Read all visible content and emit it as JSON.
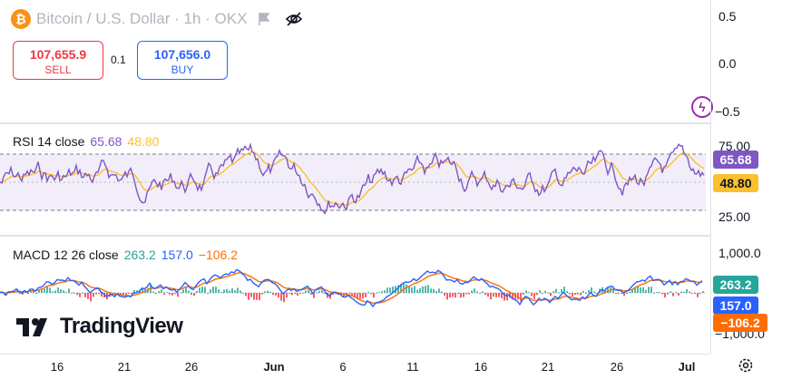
{
  "header": {
    "coin_symbol": "₿",
    "title": "Bitcoin / U.S. Dollar · 1h · OKX"
  },
  "trade": {
    "sell_price": "107,655.9",
    "sell_label": "SELL",
    "spread": "0.1",
    "buy_price": "107,656.0",
    "buy_label": "BUY"
  },
  "price_axis": [
    "0.5",
    "0.0",
    "−0.5"
  ],
  "rsi": {
    "name": "RSI 14 close",
    "value": "65.68",
    "ma_value": "48.80",
    "axis": [
      "75.00",
      "25.00"
    ],
    "badge_value": "65.68",
    "badge_ma": "48.80",
    "colors": {
      "rsi": "#7e57c2",
      "ma": "#fbc02d"
    }
  },
  "macd": {
    "name": "MACD 12 26 close",
    "histogram": "263.2",
    "macd": "157.0",
    "signal": "−106.2",
    "axis": [
      "1,000.0",
      "−1,000.0"
    ],
    "badge_hist": "263.2",
    "badge_macd": "157.0",
    "badge_signal": "−106.2",
    "colors": {
      "histogram": "#26a69a",
      "macd": "#2962ff",
      "signal": "#ff6d00"
    }
  },
  "logo": {
    "text": "TradingView"
  },
  "time_axis": [
    "16",
    "21",
    "26",
    "Jun",
    "6",
    "11",
    "16",
    "21",
    "26",
    "Jul"
  ],
  "icons": [
    "bitcoin-icon",
    "flag-icon",
    "eye-off-icon",
    "lightning-icon",
    "tradingview-logo-icon",
    "settings-icon"
  ]
}
